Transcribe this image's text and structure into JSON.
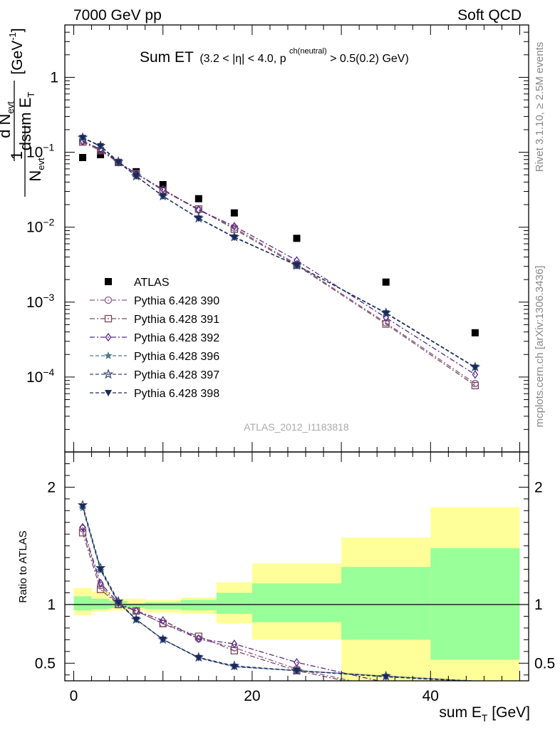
{
  "header": {
    "left": "7000 GeV pp",
    "right": "Soft QCD"
  },
  "side": {
    "rivet": "Rivet 3.1.10, ≥ 2.5M events",
    "mcplots": "mcplots.cern.ch [arXiv:1306.3436]"
  },
  "watermark": "ATLAS_2012_I1183818",
  "title": {
    "main": "Sum ET",
    "cond": "(3.2 < |η| < 4.0, p",
    "sup": "ch(neutral)",
    "tail": " > 0.5(0.2) GeV)"
  },
  "ylabel_top": {
    "num": "d N",
    "num_sub": "evt",
    "den": "dsum E",
    "den_sub": "T",
    "one": "1",
    "norm": "N",
    "norm_sub": "evt",
    "unit": " [GeV",
    "unit_sup": "-1",
    "unit_end": "]"
  },
  "ylabel_bottom": "Ratio to ATLAS",
  "xlabel": {
    "text": "sum E",
    "sub": "T",
    "unit": " [GeV]"
  },
  "legend": [
    {
      "label": "ATLAS",
      "marker": "square",
      "color": "#000000",
      "line": "none"
    },
    {
      "label": "Pythia 6.428 390",
      "marker": "circle-open",
      "color": "#8a5a8a",
      "line": "dashdot"
    },
    {
      "label": "Pythia 6.428 391",
      "marker": "square-open",
      "color": "#7a4a5a",
      "line": "dashdot"
    },
    {
      "label": "Pythia 6.428 392",
      "marker": "diamond-open",
      "color": "#5a2a8a",
      "line": "dashdot"
    },
    {
      "label": "Pythia 6.428 396",
      "marker": "star",
      "color": "#4a7a8a",
      "line": "dashed"
    },
    {
      "label": "Pythia 6.428 397",
      "marker": "star-open",
      "color": "#3a4a7a",
      "line": "dashed"
    },
    {
      "label": "Pythia 6.428 398",
      "marker": "triangle-down",
      "color": "#1a2a5a",
      "line": "dashed"
    }
  ],
  "chart_data": {
    "type": "scatter",
    "x_edges": [
      0,
      2,
      4,
      6,
      8,
      12,
      16,
      20,
      30,
      40,
      50
    ],
    "x_centers": [
      1,
      3,
      5,
      7,
      10,
      14,
      18,
      25,
      35,
      45
    ],
    "xlim": [
      -1,
      51
    ],
    "xticks": [
      0,
      20,
      40
    ],
    "top_panel": {
      "yscale": "log",
      "ylim": [
        1e-05,
        5
      ],
      "yticks": [
        {
          "value": 1,
          "label": "1"
        },
        {
          "value": 0.1,
          "label": "10",
          "exp": "−1"
        },
        {
          "value": 0.01,
          "label": "10",
          "exp": "−2"
        },
        {
          "value": 0.001,
          "label": "10",
          "exp": "−3"
        },
        {
          "value": 0.0001,
          "label": "10",
          "exp": "−4"
        }
      ]
    },
    "bottom_panel": {
      "ylim": [
        0.35,
        2.3
      ],
      "yticks": [
        {
          "value": 0.5,
          "label": "0.5"
        },
        {
          "value": 1,
          "label": "1"
        },
        {
          "value": 2,
          "label": "2"
        }
      ],
      "band_inner": [
        [
          0.95,
          1.07
        ],
        [
          0.96,
          1.05
        ],
        [
          0.97,
          1.03
        ],
        [
          0.97,
          1.01
        ],
        [
          0.96,
          1.02
        ],
        [
          0.95,
          1.04
        ],
        [
          0.92,
          1.1
        ],
        [
          0.85,
          1.18
        ],
        [
          0.7,
          1.32
        ],
        [
          0.53,
          1.48
        ]
      ],
      "band_outer": [
        [
          0.91,
          1.14
        ],
        [
          0.94,
          1.11
        ],
        [
          0.95,
          1.05
        ],
        [
          0.95,
          1.05
        ],
        [
          0.93,
          1.04
        ],
        [
          0.92,
          1.06
        ],
        [
          0.84,
          1.19
        ],
        [
          0.7,
          1.35
        ],
        [
          0.35,
          1.57
        ],
        [
          0.35,
          1.83
        ]
      ]
    },
    "series": [
      {
        "name": "ATLAS",
        "values": [
          0.085,
          0.093,
          0.073,
          0.055,
          0.037,
          0.024,
          0.0155,
          0.0071,
          0.00185,
          0.00039
        ]
      },
      {
        "name": "Pythia 6.428 390",
        "values": [
          0.14,
          0.108,
          0.073,
          0.052,
          0.031,
          0.017,
          0.0098,
          0.0032,
          0.00053,
          8.2e-05
        ]
      },
      {
        "name": "Pythia 6.428 391",
        "values": [
          0.137,
          0.105,
          0.073,
          0.052,
          0.031,
          0.0175,
          0.0094,
          0.0031,
          0.00051,
          7.7e-05
        ]
      },
      {
        "name": "Pythia 6.428 392",
        "values": [
          0.141,
          0.11,
          0.074,
          0.052,
          0.032,
          0.017,
          0.0103,
          0.0036,
          0.00062,
          0.000108
        ]
      },
      {
        "name": "Pythia 6.428 396",
        "values": [
          0.155,
          0.12,
          0.074,
          0.048,
          0.026,
          0.0131,
          0.0073,
          0.0031,
          0.00072,
          0.000135
        ]
      },
      {
        "name": "Pythia 6.428 397",
        "values": [
          0.157,
          0.122,
          0.075,
          0.048,
          0.026,
          0.0132,
          0.0074,
          0.0031,
          0.00072,
          0.000136
        ]
      },
      {
        "name": "Pythia 6.428 398",
        "values": [
          0.156,
          0.121,
          0.074,
          0.048,
          0.026,
          0.0131,
          0.0073,
          0.0031,
          0.00071,
          0.000134
        ]
      }
    ]
  }
}
